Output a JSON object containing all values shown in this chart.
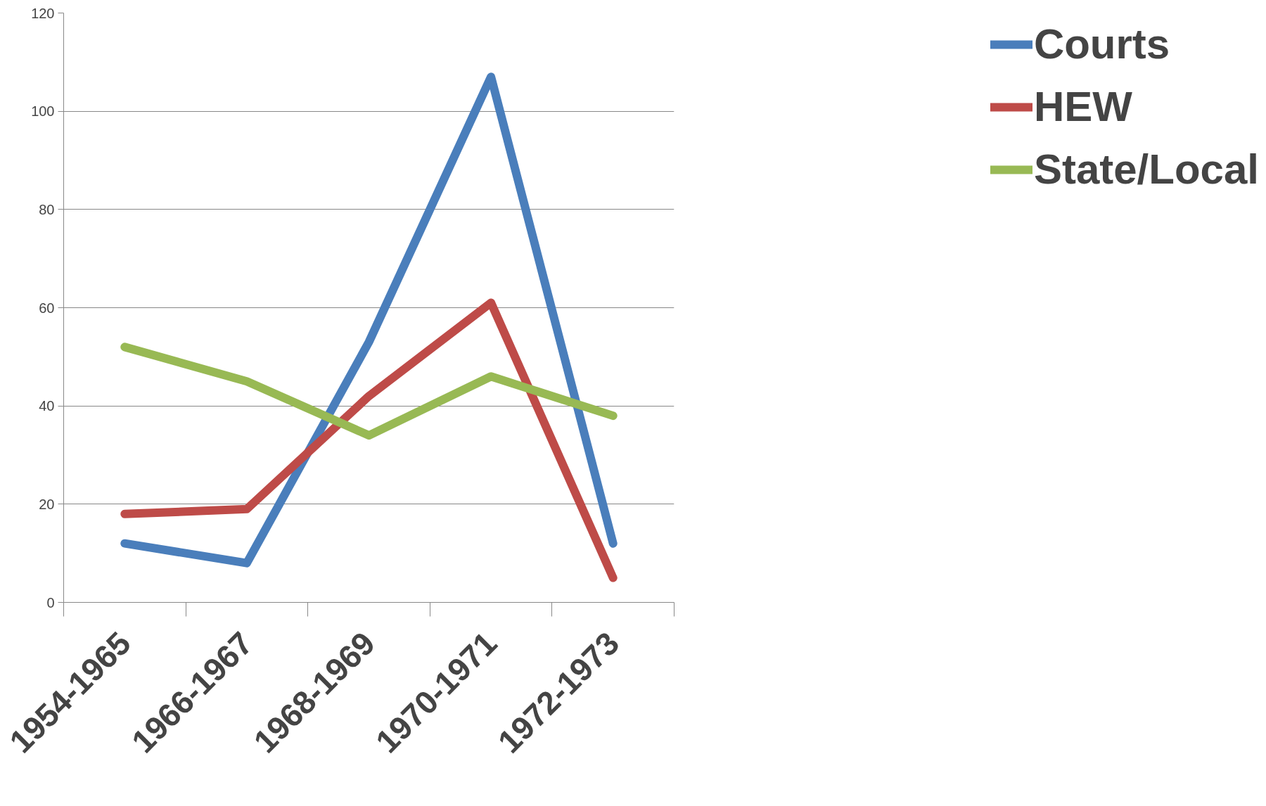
{
  "chart_data": {
    "type": "line",
    "categories": [
      "1954-1965",
      "1966-1967",
      "1968-1969",
      "1970-1971",
      "1972-1973"
    ],
    "series": [
      {
        "name": "Courts",
        "color": "#4a7ebb",
        "values": [
          12,
          8,
          53,
          107,
          12
        ]
      },
      {
        "name": "HEW",
        "color": "#be4b48",
        "values": [
          18,
          19,
          42,
          61,
          5
        ]
      },
      {
        "name": "State/Local",
        "color": "#98b954",
        "values": [
          52,
          45,
          34,
          46,
          38
        ]
      }
    ],
    "ylim": [
      0,
      120
    ],
    "yticks": [
      0,
      20,
      40,
      60,
      80,
      100,
      120
    ],
    "grid": "y",
    "legend": "right",
    "marker": "none",
    "line_style": "solid"
  }
}
